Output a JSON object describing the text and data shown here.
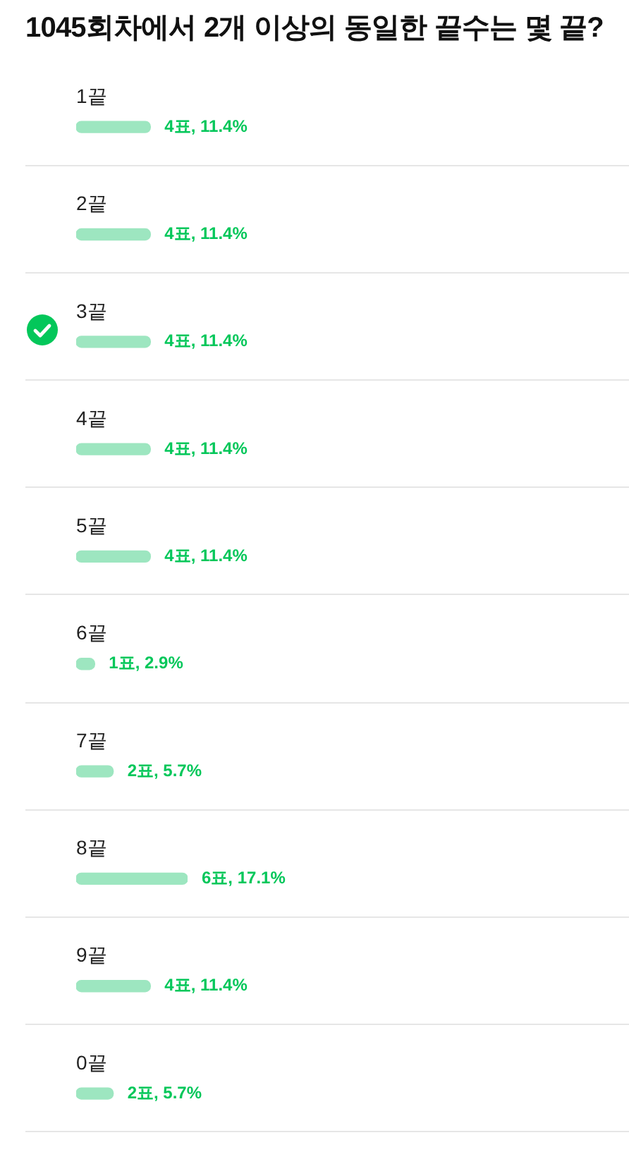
{
  "chart_data": {
    "type": "bar",
    "title": "1045회차에서 2개 이상의 동일한 끝수는 몇 끝?",
    "orientation": "horizontal",
    "categories": [
      "1끝",
      "2끝",
      "3끝",
      "4끝",
      "5끝",
      "6끝",
      "7끝",
      "8끝",
      "9끝",
      "0끝"
    ],
    "values": [
      4,
      4,
      4,
      4,
      4,
      1,
      2,
      6,
      4,
      2
    ],
    "color": "#9de6c0",
    "value_labels": [
      "4표, 11.4%",
      "4표, 11.4%",
      "4표, 11.4%",
      "4표, 11.4%",
      "4표, 11.4%",
      "1표, 2.9%",
      "2표, 5.7%",
      "6표, 17.1%",
      "4표, 11.4%",
      "2표, 5.7%"
    ],
    "grid": "y",
    "tick_labels": "y"
  }
}
